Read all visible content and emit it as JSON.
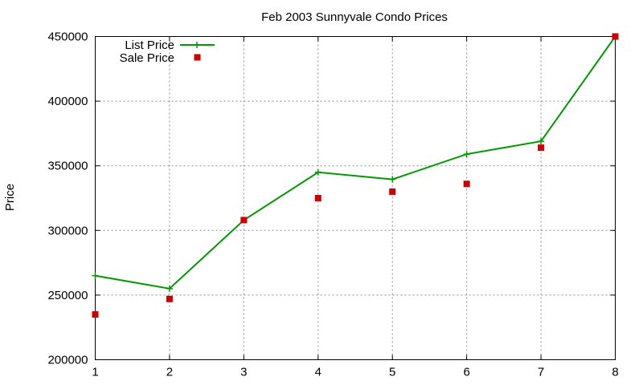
{
  "chart_data": {
    "type": "line",
    "title": "Feb 2003 Sunnyvale Condo Prices",
    "xlabel": "",
    "ylabel": "Price",
    "x": [
      1,
      2,
      3,
      4,
      5,
      6,
      7,
      8
    ],
    "xlim": [
      1,
      8
    ],
    "ylim": [
      200000,
      450000
    ],
    "xticks": [
      "1",
      "2",
      "3",
      "4",
      "5",
      "6",
      "7",
      "8"
    ],
    "yticks": [
      "200000",
      "250000",
      "300000",
      "350000",
      "400000",
      "450000"
    ],
    "grid": true,
    "legend_position": "top-left",
    "series": [
      {
        "name": "List Price",
        "style": "line-with-plus-markers",
        "color": "#009900",
        "values": [
          265000,
          255000,
          308000,
          345000,
          339500,
          359000,
          369000,
          450000
        ]
      },
      {
        "name": "Sale Price",
        "style": "square-markers",
        "color": "#cc0000",
        "values": [
          235000,
          247000,
          308000,
          325000,
          330000,
          336000,
          364000,
          450000
        ]
      }
    ]
  }
}
